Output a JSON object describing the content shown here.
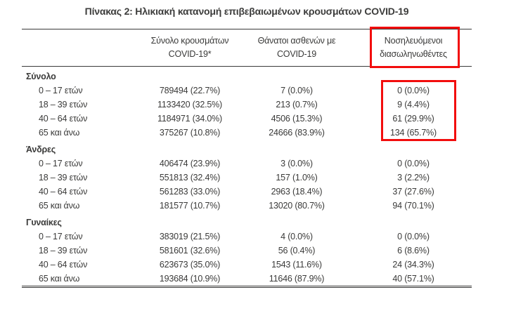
{
  "title": "Πίνακας 2: Ηλικιακή κατανομή επιβεβαιωμένων κρουσμάτων COVID-19",
  "table": {
    "headers": {
      "cases": {
        "line1": "Σύνολο κρουσμάτων",
        "line2": "COVID-19*"
      },
      "deaths": {
        "line1": "Θάνατοι ασθενών με",
        "line2": "COVID-19"
      },
      "intubated": {
        "line1": "Νοσηλευόμενοι",
        "line2": "διασωληνωθέντες"
      }
    },
    "sections": [
      {
        "label": "Σύνολο",
        "rows": [
          {
            "age": "0 – 17 ετών",
            "cases": "789494 (22.7%)",
            "deaths": "7 (0.0%)",
            "intubated": "0 (0.0%)"
          },
          {
            "age": "18 – 39 ετών",
            "cases": "1133420 (32.5%)",
            "deaths": "213 (0.7%)",
            "intubated": "9 (4.4%)"
          },
          {
            "age": "40 – 64 ετών",
            "cases": "1184971 (34.0%)",
            "deaths": "4506 (15.3%)",
            "intubated": "61 (29.9%)"
          },
          {
            "age": "65 και άνω",
            "cases": "375267 (10.8%)",
            "deaths": "24666 (83.9%)",
            "intubated": "134 (65.7%)"
          }
        ]
      },
      {
        "label": "Άνδρες",
        "rows": [
          {
            "age": "0 – 17 ετών",
            "cases": "406474 (23.9%)",
            "deaths": "3 (0.0%)",
            "intubated": "0 (0.0%)"
          },
          {
            "age": "18 – 39 ετών",
            "cases": "551813 (32.4%)",
            "deaths": "157 (1.0%)",
            "intubated": "3 (2.2%)"
          },
          {
            "age": "40 – 64 ετών",
            "cases": "561283 (33.0%)",
            "deaths": "2963 (18.4%)",
            "intubated": "37 (27.6%)"
          },
          {
            "age": "65 και άνω",
            "cases": "181577 (10.7%)",
            "deaths": "13020 (80.7%)",
            "intubated": "94 (70.1%)"
          }
        ]
      },
      {
        "label": "Γυναίκες",
        "rows": [
          {
            "age": "0 – 17 ετών",
            "cases": "383019 (21.5%)",
            "deaths": "4 (0.0%)",
            "intubated": "0 (0.0%)"
          },
          {
            "age": "18 – 39 ετών",
            "cases": "581601 (32.6%)",
            "deaths": "56 (0.4%)",
            "intubated": "6 (8.6%)"
          },
          {
            "age": "40 – 64 ετών",
            "cases": "623673 (35.0%)",
            "deaths": "1543 (11.6%)",
            "intubated": "24 (34.3%)"
          },
          {
            "age": "65 και άνω",
            "cases": "193684 (10.9%)",
            "deaths": "11646 (87.9%)",
            "intubated": "40 (57.1%)"
          }
        ]
      }
    ]
  },
  "annotations": {
    "highlight_color": "#f20d0d",
    "highlighted_column": "Νοσηλευόμενοι διασωληνωθέντες",
    "highlighted_values": [
      "0 (0.0%)",
      "9 (4.4%)",
      "61 (29.9%)",
      "134 (65.7%)"
    ]
  },
  "colors": {
    "text": "#3a3a39",
    "rule": "#3a3a39",
    "background": "#ffffff"
  }
}
